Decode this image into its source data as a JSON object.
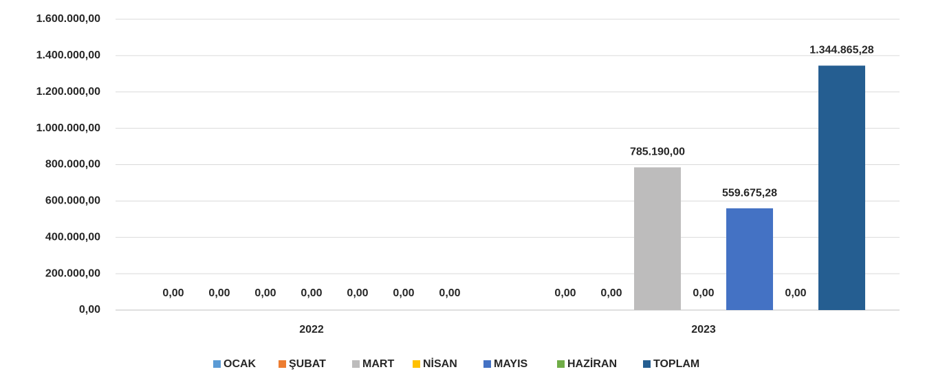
{
  "chart_data": {
    "type": "bar",
    "categories": [
      "2022",
      "2023"
    ],
    "series": [
      {
        "name": "OCAK",
        "color": "#5b9bd5",
        "values": [
          0,
          0
        ],
        "value_labels": [
          "0,00",
          "0,00"
        ]
      },
      {
        "name": "ŞUBAT",
        "color": "#ed7d31",
        "values": [
          0,
          0
        ],
        "value_labels": [
          "0,00",
          "0,00"
        ]
      },
      {
        "name": "MART",
        "color": "#bdbcbc",
        "values": [
          0,
          785190
        ],
        "value_labels": [
          "0,00",
          "785.190,00"
        ]
      },
      {
        "name": "NİSAN",
        "color": "#ffc000",
        "values": [
          0,
          0
        ],
        "value_labels": [
          "0,00",
          "0,00"
        ]
      },
      {
        "name": "MAYIS",
        "color": "#4472c4",
        "values": [
          0,
          559675.28
        ],
        "value_labels": [
          "0,00",
          "559.675,28"
        ]
      },
      {
        "name": "HAZİRAN",
        "color": "#70ad47",
        "values": [
          0,
          0
        ],
        "value_labels": [
          "0,00",
          "0,00"
        ]
      },
      {
        "name": "TOPLAM",
        "color": "#255e91",
        "values": [
          0,
          1344865.28
        ],
        "value_labels": [
          "0,00",
          "1.344.865,28"
        ]
      }
    ],
    "ylim": [
      0,
      1600000
    ],
    "yticks": [
      {
        "value": 0,
        "label": "0,00"
      },
      {
        "value": 200000,
        "label": "200.000,00"
      },
      {
        "value": 400000,
        "label": "400.000,00"
      },
      {
        "value": 600000,
        "label": "600.000,00"
      },
      {
        "value": 800000,
        "label": "800.000,00"
      },
      {
        "value": 1000000,
        "label": "1.000.000,00"
      },
      {
        "value": 1200000,
        "label": "1.200.000,00"
      },
      {
        "value": 1400000,
        "label": "1.400.000,00"
      },
      {
        "value": 1600000,
        "label": "1.600.000,00"
      }
    ],
    "grid": true,
    "legend": "bottom"
  }
}
